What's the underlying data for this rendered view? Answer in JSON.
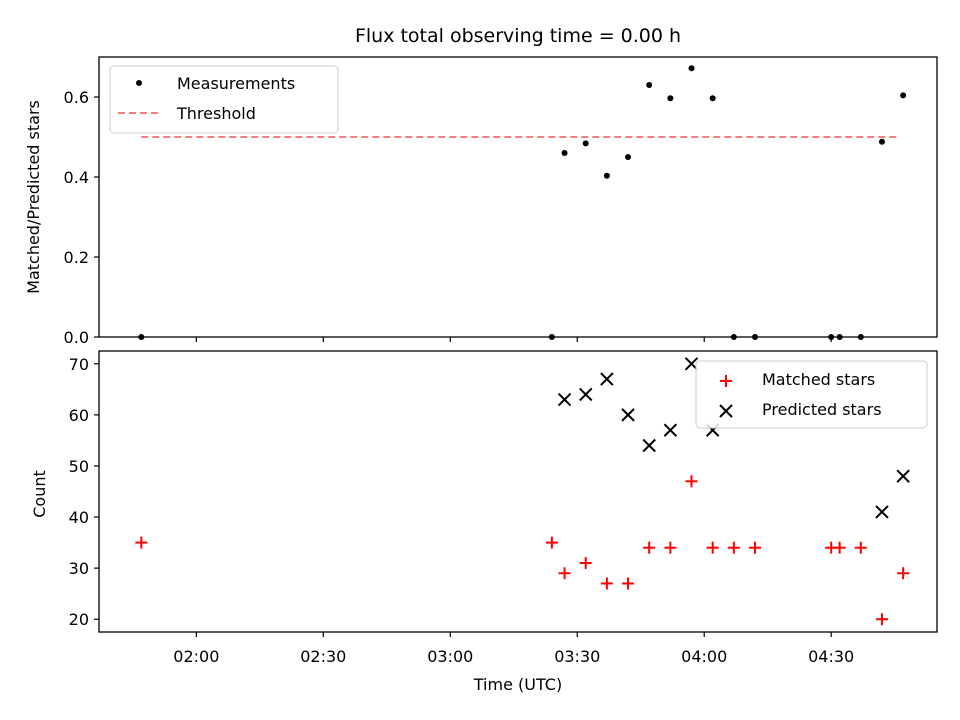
{
  "title": "Flux total observing time = 0.00 h",
  "xlabel": "Time (UTC)",
  "xticks": [
    "02:00",
    "02:30",
    "03:00",
    "03:30",
    "04:00",
    "04:30"
  ],
  "chart_data": [
    {
      "type": "scatter",
      "ylabel": "Matched/Predicted stars",
      "xlim": [
        "01:37",
        "04:55"
      ],
      "ylim": [
        0,
        0.7
      ],
      "yticks": [
        "0.0",
        "0.2",
        "0.4",
        "0.6"
      ],
      "legend_position": "upper left",
      "colors": {
        "measurements": "#000000",
        "threshold": "#f08080"
      },
      "series": [
        {
          "name": "Measurements",
          "x": [
            "01:47",
            "03:24",
            "03:27",
            "03:32",
            "03:37",
            "03:42",
            "03:47",
            "03:52",
            "03:57",
            "04:02",
            "04:07",
            "04:12",
            "04:30",
            "04:32",
            "04:37",
            "04:42",
            "04:47"
          ],
          "y": [
            0.0,
            0.0,
            0.46,
            0.484,
            0.403,
            0.45,
            0.63,
            0.597,
            0.672,
            0.597,
            0.0,
            0.0,
            0.0,
            0.0,
            0.0,
            0.488,
            0.604
          ]
        },
        {
          "name": "Threshold",
          "x": [
            "01:47",
            "04:46"
          ],
          "y": [
            0.5,
            0.5
          ]
        }
      ]
    },
    {
      "type": "scatter",
      "ylabel": "Count",
      "xlim": [
        "01:37",
        "04:55"
      ],
      "ylim": [
        17.5,
        72.5
      ],
      "yticks": [
        "20",
        "30",
        "40",
        "50",
        "60",
        "70"
      ],
      "legend_position": "upper right",
      "colors": {
        "matched": "#ff0000",
        "predicted": "#000000"
      },
      "series": [
        {
          "name": "Matched stars",
          "x": [
            "01:47",
            "03:24",
            "03:27",
            "03:32",
            "03:37",
            "03:42",
            "03:47",
            "03:52",
            "03:57",
            "04:02",
            "04:07",
            "04:12",
            "04:30",
            "04:32",
            "04:37",
            "04:42",
            "04:47"
          ],
          "y": [
            35,
            35,
            29,
            31,
            27,
            27,
            34,
            34,
            47,
            34,
            34,
            34,
            34,
            34,
            34,
            20,
            29
          ]
        },
        {
          "name": "Predicted stars",
          "x": [
            "03:27",
            "03:32",
            "03:37",
            "03:42",
            "03:47",
            "03:52",
            "03:57",
            "04:02",
            "04:42",
            "04:47"
          ],
          "y": [
            63,
            64,
            67,
            60,
            54,
            57,
            70,
            57,
            41,
            48
          ]
        }
      ]
    }
  ]
}
